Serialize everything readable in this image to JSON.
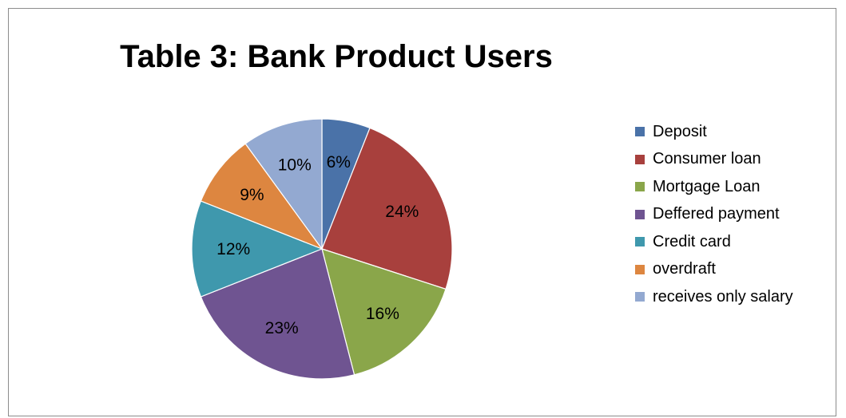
{
  "chart_data": {
    "type": "pie",
    "title": "Table 3: Bank Product Users",
    "legend_position": "right",
    "categories": [
      "Deposit",
      "Consumer loan",
      "Mortgage Loan",
      "Deffered payment",
      "Credit card",
      "overdraft",
      "receives only salary"
    ],
    "values": [
      6,
      24,
      16,
      23,
      12,
      9,
      10
    ],
    "labels": [
      "6%",
      "24%",
      "16%",
      "23%",
      "12%",
      "9%",
      "10%"
    ],
    "colors": [
      "#4a72a8",
      "#a8403d",
      "#8aa64a",
      "#6f5491",
      "#3f98ad",
      "#dd8640",
      "#93a9d1"
    ]
  }
}
